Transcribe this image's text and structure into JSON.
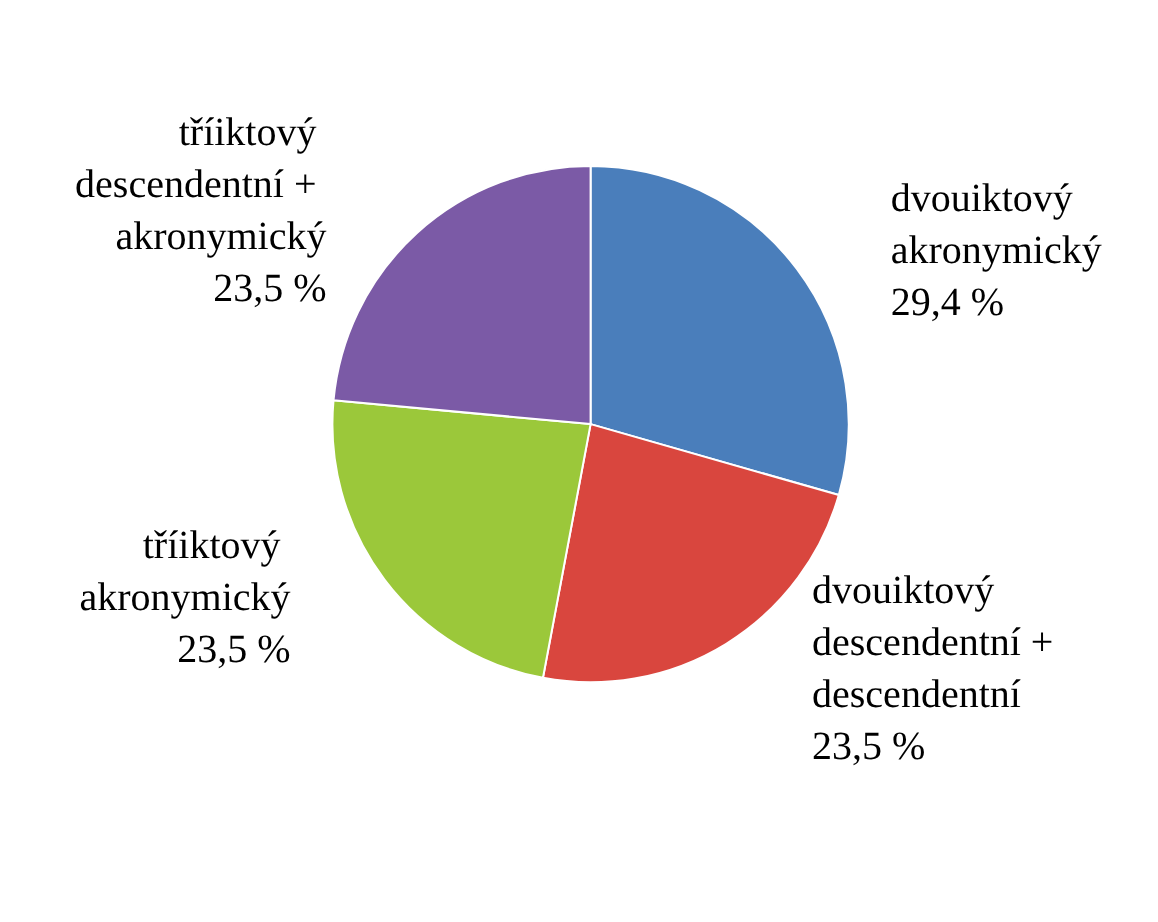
{
  "chart_data": {
    "type": "pie",
    "categories": [
      "dvouiktový akronymický",
      "dvouiktový descendentní + descendentní",
      "tříiktový akronymický",
      "tříiktový descendentní + akronymický"
    ],
    "values": [
      29.4,
      23.5,
      23.5,
      23.5
    ],
    "value_labels": [
      "29,4 %",
      "23,5 %",
      "23,5 %",
      "23,5 %"
    ],
    "colors": [
      "#4a7ebb",
      "#d9463e",
      "#9bc83a",
      "#7b5aa6"
    ],
    "legend": false
  }
}
